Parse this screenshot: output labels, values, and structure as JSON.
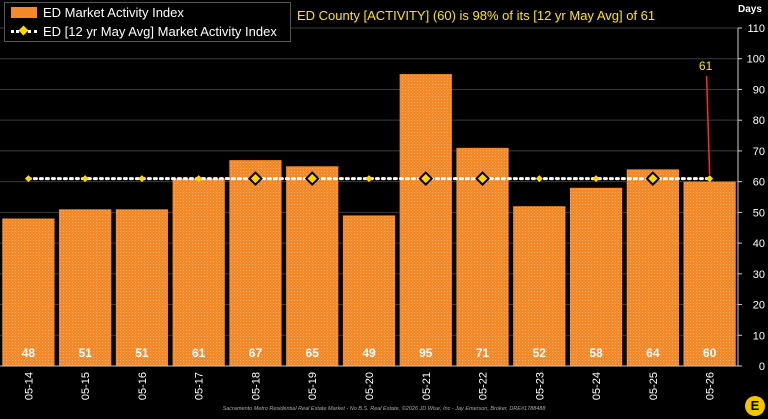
{
  "legend": {
    "bar_label": "ED Market Activity Index",
    "line_label": "ED [12 yr May Avg] Market Activity Index"
  },
  "headline": "ED County [ACTIVITY] (60) is 98% of its [12 yr May Avg] of 61",
  "y_unit": "Days",
  "footer": "Sacramento Metro Residential Real Estate Market - No B.S. Real Estate, ©2026 JD Wise, Inc - Jay Emerson, Broker, DRE#1788488",
  "logo_text": "E",
  "colors": {
    "bar": "#f4892a",
    "avg_marker": "#ffd700",
    "callout": "#ff2a2a",
    "headline": "#ffe600"
  },
  "chart_data": {
    "type": "bar",
    "categories": [
      "05-14",
      "05-15",
      "05-16",
      "05-17",
      "05-18",
      "05-19",
      "05-20",
      "05-21",
      "05-22",
      "05-23",
      "05-24",
      "05-25",
      "05-26"
    ],
    "series": [
      {
        "name": "ED Market Activity Index",
        "values": [
          48,
          51,
          51,
          61,
          67,
          65,
          49,
          95,
          71,
          52,
          58,
          64,
          60
        ]
      },
      {
        "name": "ED [12 yr May Avg] Market Activity Index",
        "values": [
          61,
          61,
          61,
          61,
          61,
          61,
          61,
          61,
          61,
          61,
          61,
          61,
          61
        ]
      }
    ],
    "large_markers": [
      "05-18",
      "05-19",
      "05-21",
      "05-22",
      "05-25"
    ],
    "callout": {
      "category": "05-26",
      "value": 61,
      "label": "61"
    },
    "ylabel": "Days",
    "ylim": [
      0,
      110
    ],
    "yticks": [
      0,
      10,
      20,
      30,
      40,
      50,
      60,
      70,
      80,
      90,
      100,
      110
    ],
    "grid": true,
    "legend_position": "top-left"
  }
}
